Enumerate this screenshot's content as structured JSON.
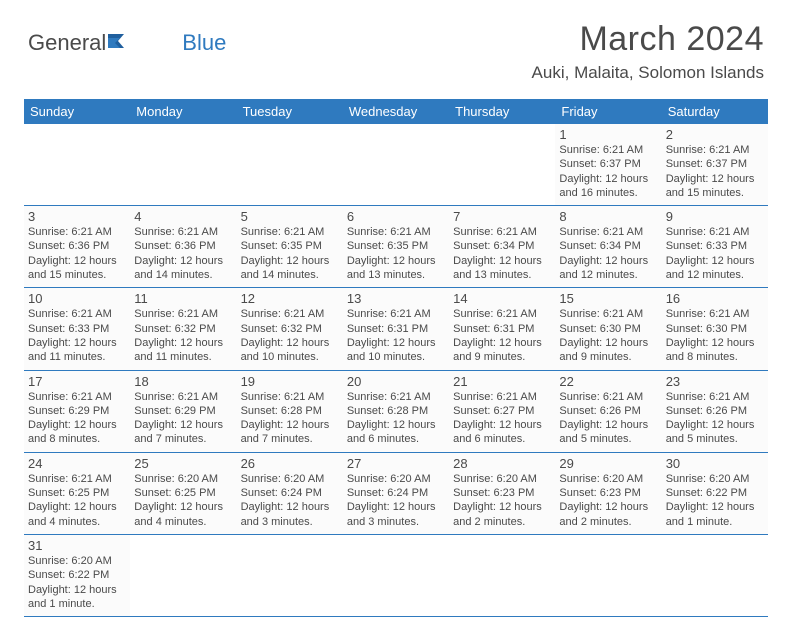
{
  "logo": {
    "text1": "General",
    "text2": "Blue"
  },
  "title": "March 2024",
  "location": "Auki, Malaita, Solomon Islands",
  "weekdays": [
    "Sunday",
    "Monday",
    "Tuesday",
    "Wednesday",
    "Thursday",
    "Friday",
    "Saturday"
  ],
  "colors": {
    "header_bg": "#2f7abf",
    "header_text": "#ffffff",
    "cell_bg": "#fbfbfb",
    "border": "#2f7abf",
    "text": "#4a4a4a"
  },
  "grid": [
    [
      {
        "empty": true
      },
      {
        "empty": true
      },
      {
        "empty": true
      },
      {
        "empty": true
      },
      {
        "empty": true
      },
      {
        "day": "1",
        "sunrise": "Sunrise: 6:21 AM",
        "sunset": "Sunset: 6:37 PM",
        "daylight": "Daylight: 12 hours and 16 minutes."
      },
      {
        "day": "2",
        "sunrise": "Sunrise: 6:21 AM",
        "sunset": "Sunset: 6:37 PM",
        "daylight": "Daylight: 12 hours and 15 minutes."
      }
    ],
    [
      {
        "day": "3",
        "sunrise": "Sunrise: 6:21 AM",
        "sunset": "Sunset: 6:36 PM",
        "daylight": "Daylight: 12 hours and 15 minutes."
      },
      {
        "day": "4",
        "sunrise": "Sunrise: 6:21 AM",
        "sunset": "Sunset: 6:36 PM",
        "daylight": "Daylight: 12 hours and 14 minutes."
      },
      {
        "day": "5",
        "sunrise": "Sunrise: 6:21 AM",
        "sunset": "Sunset: 6:35 PM",
        "daylight": "Daylight: 12 hours and 14 minutes."
      },
      {
        "day": "6",
        "sunrise": "Sunrise: 6:21 AM",
        "sunset": "Sunset: 6:35 PM",
        "daylight": "Daylight: 12 hours and 13 minutes."
      },
      {
        "day": "7",
        "sunrise": "Sunrise: 6:21 AM",
        "sunset": "Sunset: 6:34 PM",
        "daylight": "Daylight: 12 hours and 13 minutes."
      },
      {
        "day": "8",
        "sunrise": "Sunrise: 6:21 AM",
        "sunset": "Sunset: 6:34 PM",
        "daylight": "Daylight: 12 hours and 12 minutes."
      },
      {
        "day": "9",
        "sunrise": "Sunrise: 6:21 AM",
        "sunset": "Sunset: 6:33 PM",
        "daylight": "Daylight: 12 hours and 12 minutes."
      }
    ],
    [
      {
        "day": "10",
        "sunrise": "Sunrise: 6:21 AM",
        "sunset": "Sunset: 6:33 PM",
        "daylight": "Daylight: 12 hours and 11 minutes."
      },
      {
        "day": "11",
        "sunrise": "Sunrise: 6:21 AM",
        "sunset": "Sunset: 6:32 PM",
        "daylight": "Daylight: 12 hours and 11 minutes."
      },
      {
        "day": "12",
        "sunrise": "Sunrise: 6:21 AM",
        "sunset": "Sunset: 6:32 PM",
        "daylight": "Daylight: 12 hours and 10 minutes."
      },
      {
        "day": "13",
        "sunrise": "Sunrise: 6:21 AM",
        "sunset": "Sunset: 6:31 PM",
        "daylight": "Daylight: 12 hours and 10 minutes."
      },
      {
        "day": "14",
        "sunrise": "Sunrise: 6:21 AM",
        "sunset": "Sunset: 6:31 PM",
        "daylight": "Daylight: 12 hours and 9 minutes."
      },
      {
        "day": "15",
        "sunrise": "Sunrise: 6:21 AM",
        "sunset": "Sunset: 6:30 PM",
        "daylight": "Daylight: 12 hours and 9 minutes."
      },
      {
        "day": "16",
        "sunrise": "Sunrise: 6:21 AM",
        "sunset": "Sunset: 6:30 PM",
        "daylight": "Daylight: 12 hours and 8 minutes."
      }
    ],
    [
      {
        "day": "17",
        "sunrise": "Sunrise: 6:21 AM",
        "sunset": "Sunset: 6:29 PM",
        "daylight": "Daylight: 12 hours and 8 minutes."
      },
      {
        "day": "18",
        "sunrise": "Sunrise: 6:21 AM",
        "sunset": "Sunset: 6:29 PM",
        "daylight": "Daylight: 12 hours and 7 minutes."
      },
      {
        "day": "19",
        "sunrise": "Sunrise: 6:21 AM",
        "sunset": "Sunset: 6:28 PM",
        "daylight": "Daylight: 12 hours and 7 minutes."
      },
      {
        "day": "20",
        "sunrise": "Sunrise: 6:21 AM",
        "sunset": "Sunset: 6:28 PM",
        "daylight": "Daylight: 12 hours and 6 minutes."
      },
      {
        "day": "21",
        "sunrise": "Sunrise: 6:21 AM",
        "sunset": "Sunset: 6:27 PM",
        "daylight": "Daylight: 12 hours and 6 minutes."
      },
      {
        "day": "22",
        "sunrise": "Sunrise: 6:21 AM",
        "sunset": "Sunset: 6:26 PM",
        "daylight": "Daylight: 12 hours and 5 minutes."
      },
      {
        "day": "23",
        "sunrise": "Sunrise: 6:21 AM",
        "sunset": "Sunset: 6:26 PM",
        "daylight": "Daylight: 12 hours and 5 minutes."
      }
    ],
    [
      {
        "day": "24",
        "sunrise": "Sunrise: 6:21 AM",
        "sunset": "Sunset: 6:25 PM",
        "daylight": "Daylight: 12 hours and 4 minutes."
      },
      {
        "day": "25",
        "sunrise": "Sunrise: 6:20 AM",
        "sunset": "Sunset: 6:25 PM",
        "daylight": "Daylight: 12 hours and 4 minutes."
      },
      {
        "day": "26",
        "sunrise": "Sunrise: 6:20 AM",
        "sunset": "Sunset: 6:24 PM",
        "daylight": "Daylight: 12 hours and 3 minutes."
      },
      {
        "day": "27",
        "sunrise": "Sunrise: 6:20 AM",
        "sunset": "Sunset: 6:24 PM",
        "daylight": "Daylight: 12 hours and 3 minutes."
      },
      {
        "day": "28",
        "sunrise": "Sunrise: 6:20 AM",
        "sunset": "Sunset: 6:23 PM",
        "daylight": "Daylight: 12 hours and 2 minutes."
      },
      {
        "day": "29",
        "sunrise": "Sunrise: 6:20 AM",
        "sunset": "Sunset: 6:23 PM",
        "daylight": "Daylight: 12 hours and 2 minutes."
      },
      {
        "day": "30",
        "sunrise": "Sunrise: 6:20 AM",
        "sunset": "Sunset: 6:22 PM",
        "daylight": "Daylight: 12 hours and 1 minute."
      }
    ],
    [
      {
        "day": "31",
        "sunrise": "Sunrise: 6:20 AM",
        "sunset": "Sunset: 6:22 PM",
        "daylight": "Daylight: 12 hours and 1 minute."
      },
      {
        "empty": true
      },
      {
        "empty": true
      },
      {
        "empty": true
      },
      {
        "empty": true
      },
      {
        "empty": true
      },
      {
        "empty": true
      }
    ]
  ]
}
